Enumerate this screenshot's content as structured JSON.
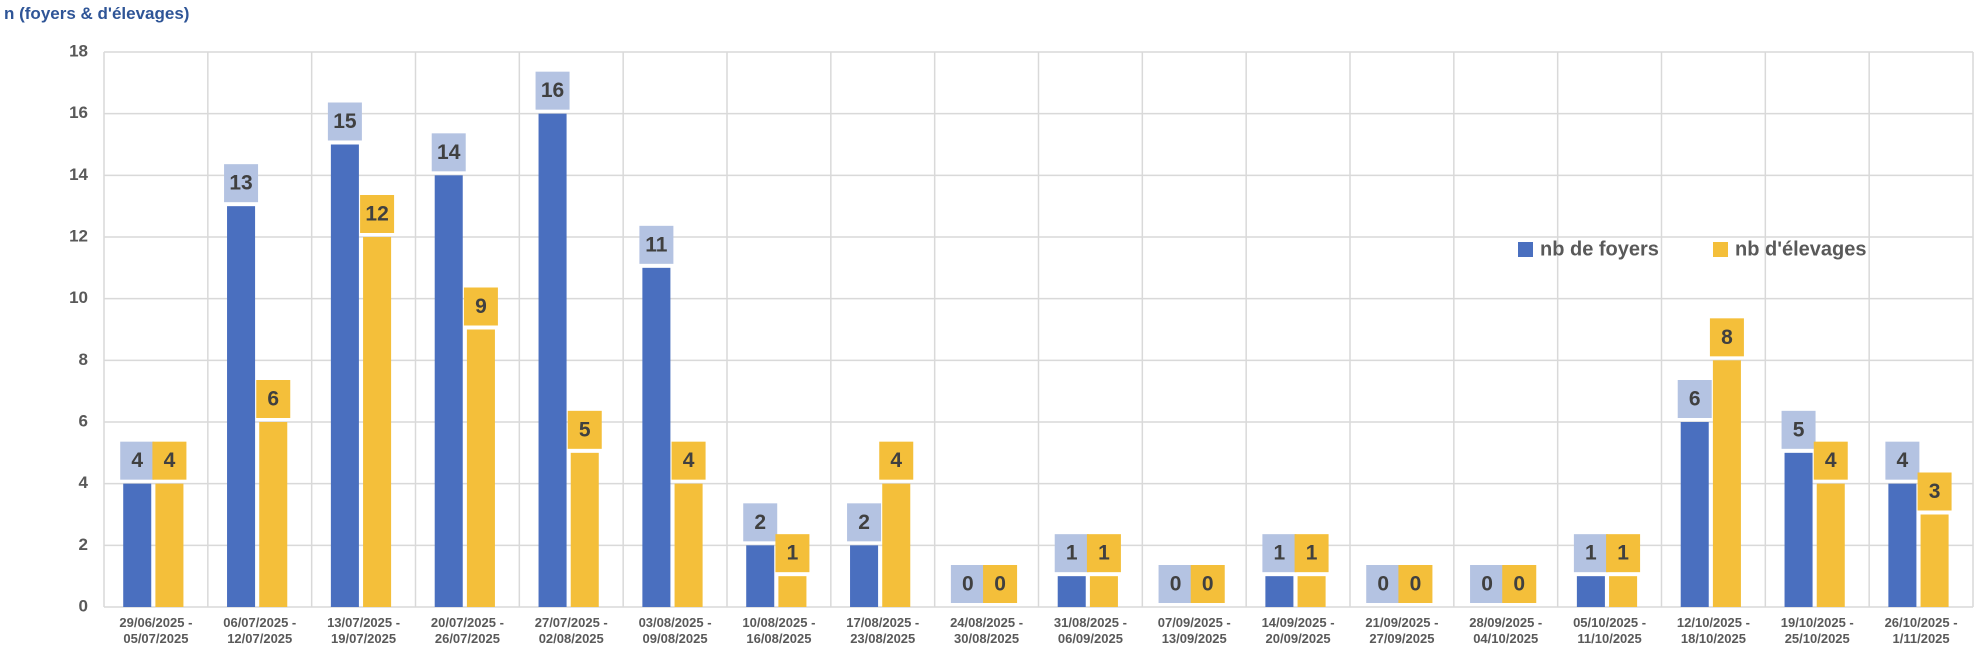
{
  "chart_data": {
    "type": "bar",
    "y_label": "n (foyers & d'élevages)",
    "categories": [
      "29/06/2025 - 05/07/2025",
      "06/07/2025 - 12/07/2025",
      "13/07/2025 - 19/07/2025",
      "20/07/2025 - 26/07/2025",
      "27/07/2025 - 02/08/2025",
      "03/08/2025 - 09/08/2025",
      "10/08/2025 - 16/08/2025",
      "17/08/2025 - 23/08/2025",
      "24/08/2025 - 30/08/2025",
      "31/08/2025 - 06/09/2025",
      "07/09/2025 - 13/09/2025",
      "14/09/2025 - 20/09/2025",
      "21/09/2025 - 27/09/2025",
      "28/09/2025 - 04/10/2025",
      "05/10/2025 - 11/10/2025",
      "12/10/2025 - 18/10/2025",
      "19/10/2025 - 25/10/2025",
      "26/10/2025 - 1/11/2025"
    ],
    "series": [
      {
        "name": "nb de foyers",
        "color": "#4a6fbf",
        "label_box": "#b4c3e2",
        "values": [
          4,
          13,
          15,
          14,
          16,
          11,
          2,
          2,
          0,
          1,
          0,
          1,
          0,
          0,
          1,
          6,
          5,
          4
        ]
      },
      {
        "name": "nb  d'élevages",
        "color": "#f4bf3a",
        "label_box": "#f4bf3a",
        "values": [
          4,
          6,
          12,
          9,
          5,
          4,
          1,
          4,
          0,
          1,
          0,
          1,
          0,
          0,
          1,
          8,
          4,
          3
        ]
      }
    ],
    "ylim": [
      0,
      18
    ],
    "yticks": [
      0,
      2,
      4,
      6,
      8,
      10,
      12,
      14,
      16,
      18
    ],
    "grid": true,
    "legend": "upper right"
  }
}
